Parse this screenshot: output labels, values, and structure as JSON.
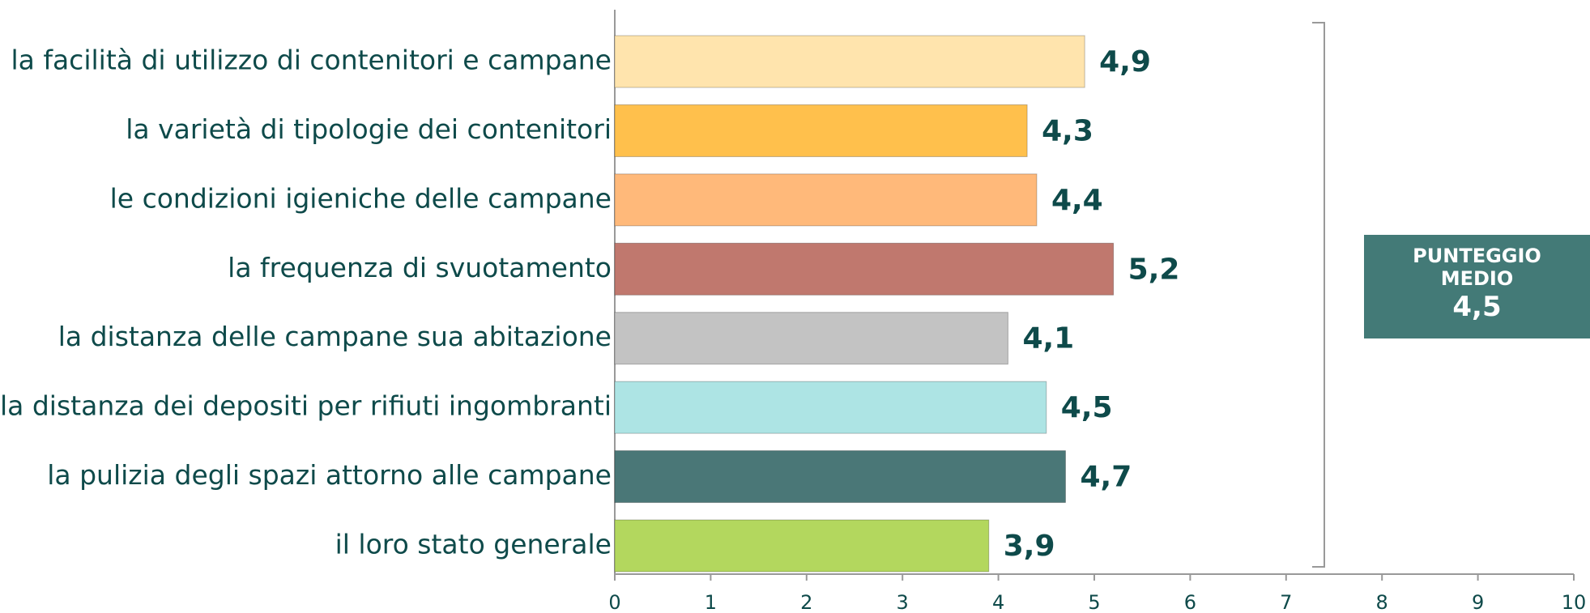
{
  "chart_data": {
    "type": "bar",
    "orientation": "horizontal",
    "categories": [
      "la facilità di utilizzo di contenitori e campane",
      "la varietà di tipologie dei contenitori",
      "le condizioni igieniche delle campane",
      "la frequenza di svuotamento",
      "la distanza delle campane sua abitazione",
      "la distanza dei depositi per rifiuti ingombranti",
      "la pulizia degli spazi attorno alle campane",
      "il loro stato generale"
    ],
    "values": [
      4.9,
      4.3,
      4.4,
      5.2,
      4.1,
      4.5,
      4.7,
      3.9
    ],
    "value_labels": [
      "4,9",
      "4,3",
      "4,4",
      "5,2",
      "4,1",
      "4,5",
      "4,7",
      "3,9"
    ],
    "colors": [
      "#FFE4AD",
      "#FFC04C",
      "#FFB97A",
      "#C0786E",
      "#C3C3C3",
      "#ADE4E4",
      "#4A7777",
      "#B3D75E"
    ],
    "xlim": [
      0,
      10
    ],
    "xticks": [
      0,
      1,
      2,
      3,
      4,
      5,
      6,
      7,
      8,
      9,
      10
    ],
    "annotation": {
      "label": "PUNTEGGIO MEDIO",
      "value": "4,5"
    }
  }
}
